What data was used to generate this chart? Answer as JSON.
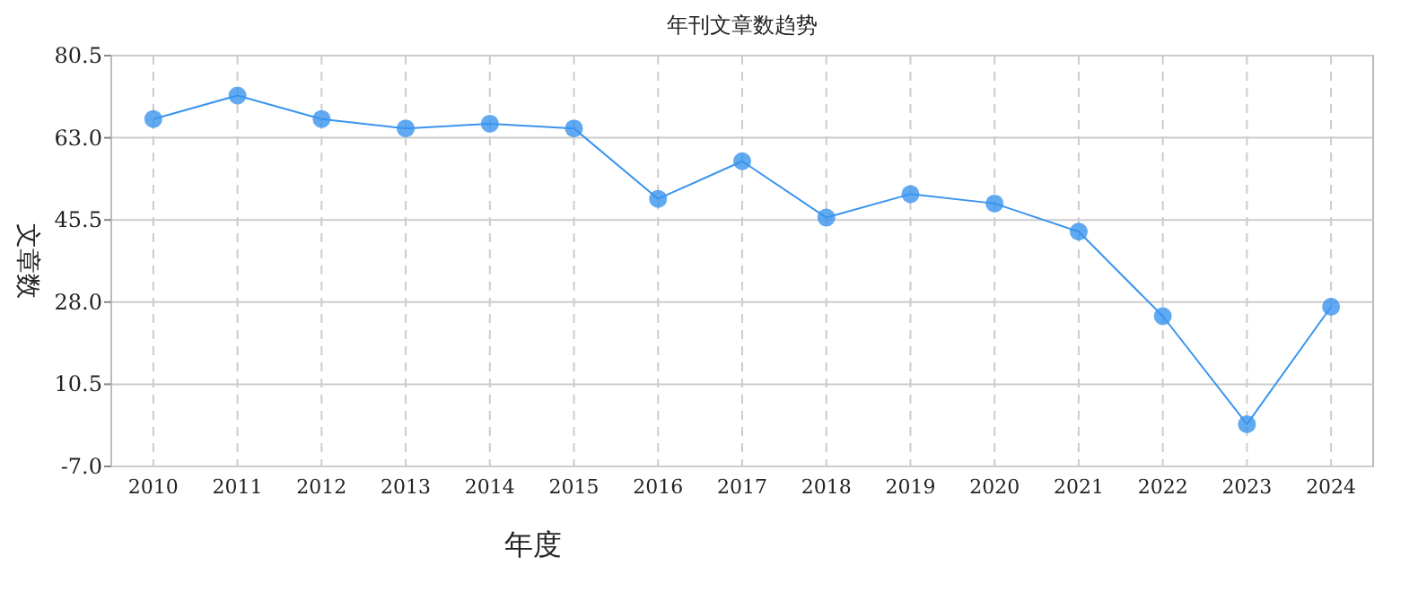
{
  "chart_data": {
    "type": "line",
    "title": "年刊文章数趋势",
    "xlabel": "年度",
    "ylabel": "文章数",
    "categories": [
      "2010",
      "2011",
      "2012",
      "2013",
      "2014",
      "2015",
      "2016",
      "2017",
      "2018",
      "2019",
      "2020",
      "2021",
      "2022",
      "2023",
      "2024"
    ],
    "values": [
      67,
      72,
      67,
      65,
      66,
      65,
      50,
      58,
      46,
      51,
      49,
      43,
      25,
      2,
      27
    ],
    "color": "#3a94ee",
    "marker": "circle",
    "grid": true,
    "ylim": [
      -7,
      80.5
    ],
    "yticks": [
      {
        "value": -7,
        "label": "-7.0"
      },
      {
        "value": 10.5,
        "label": "10.5"
      },
      {
        "value": 28,
        "label": "28.0"
      },
      {
        "value": 45.5,
        "label": "45.5"
      },
      {
        "value": 63,
        "label": "63.0"
      },
      80.5
    ]
  }
}
